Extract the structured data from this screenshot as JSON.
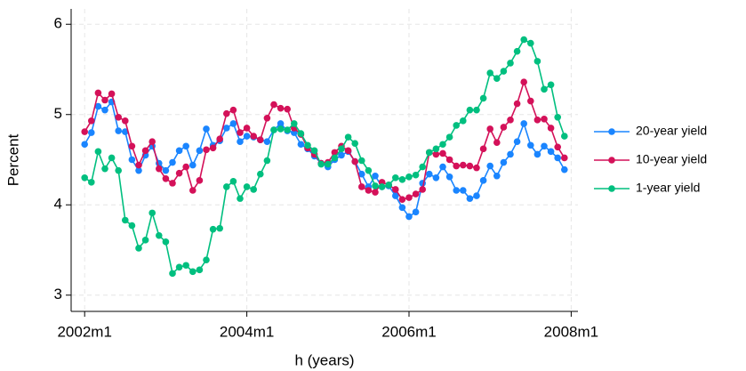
{
  "chart_data": {
    "type": "line",
    "x_label": "h (years)",
    "y_label": "Percent",
    "x": [
      "2002m1",
      "2002m2",
      "2002m3",
      "2002m4",
      "2002m5",
      "2002m6",
      "2002m7",
      "2002m8",
      "2002m9",
      "2002m10",
      "2002m11",
      "2002m12",
      "2003m1",
      "2003m2",
      "2003m3",
      "2003m4",
      "2003m5",
      "2003m6",
      "2003m7",
      "2003m8",
      "2003m9",
      "2003m10",
      "2003m11",
      "2003m12",
      "2004m1",
      "2004m2",
      "2004m3",
      "2004m4",
      "2004m5",
      "2004m6",
      "2004m7",
      "2004m8",
      "2004m9",
      "2004m10",
      "2004m11",
      "2004m12",
      "2005m1",
      "2005m2",
      "2005m3",
      "2005m4",
      "2005m5",
      "2005m6",
      "2005m7",
      "2005m8",
      "2005m9",
      "2005m10",
      "2005m11",
      "2005m12",
      "2006m1",
      "2006m2",
      "2006m3",
      "2006m4",
      "2006m5",
      "2006m6",
      "2006m7",
      "2006m8",
      "2006m9",
      "2006m10",
      "2006m11",
      "2006m12",
      "2007m1",
      "2007m2",
      "2007m3",
      "2007m4",
      "2007m5",
      "2007m6",
      "2007m7",
      "2007m8",
      "2007m9",
      "2007m10",
      "2007m11",
      "2007m12"
    ],
    "series": [
      {
        "name": "20-year yield",
        "color": "#1a85ff",
        "values": [
          4.67,
          4.8,
          5.09,
          5.05,
          5.14,
          4.82,
          4.81,
          4.5,
          4.38,
          4.55,
          4.65,
          4.46,
          4.38,
          4.47,
          4.6,
          4.65,
          4.44,
          4.6,
          4.84,
          4.66,
          4.71,
          4.85,
          4.9,
          4.7,
          4.76,
          4.75,
          4.72,
          4.7,
          4.83,
          4.9,
          4.82,
          4.8,
          4.67,
          4.62,
          4.54,
          4.46,
          4.42,
          4.5,
          4.55,
          4.59,
          4.48,
          4.34,
          4.2,
          4.32,
          4.2,
          4.21,
          4.1,
          3.97,
          3.87,
          3.92,
          4.24,
          4.34,
          4.3,
          4.42,
          4.31,
          4.16,
          4.16,
          4.07,
          4.1,
          4.27,
          4.43,
          4.32,
          4.47,
          4.56,
          4.7,
          4.9,
          4.66,
          4.56,
          4.65,
          4.59,
          4.52,
          4.39
        ]
      },
      {
        "name": "10-year yield",
        "color": "#d41159",
        "values": [
          4.81,
          4.93,
          5.24,
          5.16,
          5.23,
          4.97,
          4.93,
          4.65,
          4.44,
          4.6,
          4.7,
          4.4,
          4.29,
          4.24,
          4.35,
          4.42,
          4.16,
          4.27,
          4.61,
          4.63,
          4.73,
          5.01,
          5.05,
          4.8,
          4.85,
          4.76,
          4.72,
          4.96,
          5.11,
          5.07,
          5.06,
          4.85,
          4.78,
          4.63,
          4.56,
          4.46,
          4.47,
          4.58,
          4.65,
          4.6,
          4.48,
          4.2,
          4.16,
          4.14,
          4.25,
          4.22,
          4.17,
          4.06,
          4.08,
          4.12,
          4.17,
          4.58,
          4.56,
          4.57,
          4.5,
          4.43,
          4.44,
          4.43,
          4.41,
          4.62,
          4.84,
          4.69,
          4.86,
          4.94,
          5.12,
          5.36,
          5.15,
          4.94,
          4.95,
          4.85,
          4.64,
          4.52
        ]
      },
      {
        "name": "1-year yield",
        "color": "#00bf7f",
        "values": [
          4.3,
          4.25,
          4.59,
          4.4,
          4.52,
          4.38,
          3.83,
          3.77,
          3.52,
          3.61,
          3.91,
          3.66,
          3.59,
          3.24,
          3.31,
          3.33,
          3.26,
          3.28,
          3.39,
          3.73,
          3.74,
          4.2,
          4.26,
          4.07,
          4.2,
          4.17,
          4.34,
          4.49,
          4.83,
          4.84,
          4.83,
          4.9,
          4.79,
          4.66,
          4.6,
          4.45,
          4.45,
          4.52,
          4.62,
          4.75,
          4.68,
          4.49,
          4.38,
          4.21,
          4.2,
          4.22,
          4.3,
          4.28,
          4.31,
          4.33,
          4.42,
          4.58,
          4.62,
          4.67,
          4.75,
          4.88,
          4.93,
          5.05,
          5.05,
          5.18,
          5.46,
          5.4,
          5.48,
          5.57,
          5.7,
          5.83,
          5.79,
          5.59,
          5.28,
          5.33,
          4.97,
          4.76
        ]
      }
    ],
    "xlim": [
      "2001m11",
      "2008m2"
    ],
    "xticks": [
      "2002m1",
      "2004m1",
      "2006m1",
      "2008m1"
    ],
    "ylim": [
      2.82,
      6.17
    ],
    "yticks": [
      3,
      4,
      5,
      6
    ],
    "grid": true,
    "legend": "right"
  }
}
